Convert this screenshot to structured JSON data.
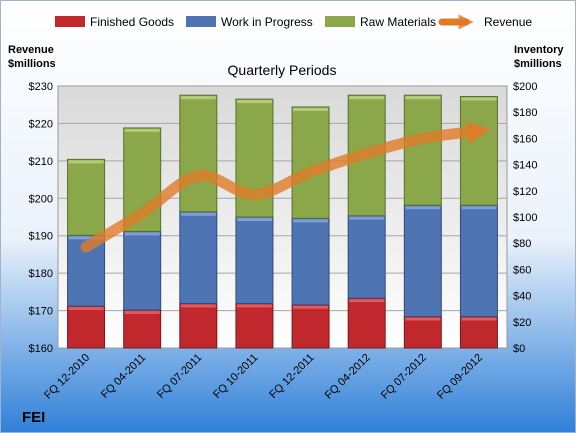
{
  "chart_data": {
    "type": "bar",
    "subtitle": "Quarterly Periods",
    "company": "FEI",
    "left_axis": {
      "title_lines": [
        "Revenue",
        "$millions"
      ],
      "min": 160,
      "max": 230,
      "step": 10,
      "prefix": "$"
    },
    "right_axis": {
      "title_lines": [
        "Inventory",
        "$millions"
      ],
      "min": 0,
      "max": 200,
      "step": 20,
      "prefix": "$"
    },
    "categories": [
      "FQ 12-2010",
      "FQ 04-2011",
      "FQ 07-2011",
      "FQ 10-2011",
      "FQ 12-2011",
      "FQ 04-2012",
      "FQ 07-2012",
      "FQ 09-2012"
    ],
    "stacked": true,
    "series": [
      {
        "name": "Finished Goods",
        "axis": "right",
        "color": "#c0282d",
        "values": [
          32,
          29,
          34,
          34,
          33,
          38,
          24,
          24
        ]
      },
      {
        "name": "Work in Progress",
        "axis": "right",
        "color": "#4f74b3",
        "values": [
          54,
          60,
          70,
          66,
          66,
          63,
          85,
          85
        ]
      },
      {
        "name": "Raw Materials",
        "axis": "right",
        "color": "#8aa84a",
        "values": [
          58,
          79,
          89,
          90,
          85,
          92,
          84,
          83
        ]
      }
    ],
    "line_series": {
      "name": "Revenue",
      "axis": "left",
      "color": "#e07b28",
      "values": [
        187,
        196,
        206,
        201,
        207,
        212,
        216,
        218
      ]
    },
    "grid": true,
    "legend_position": "top"
  }
}
